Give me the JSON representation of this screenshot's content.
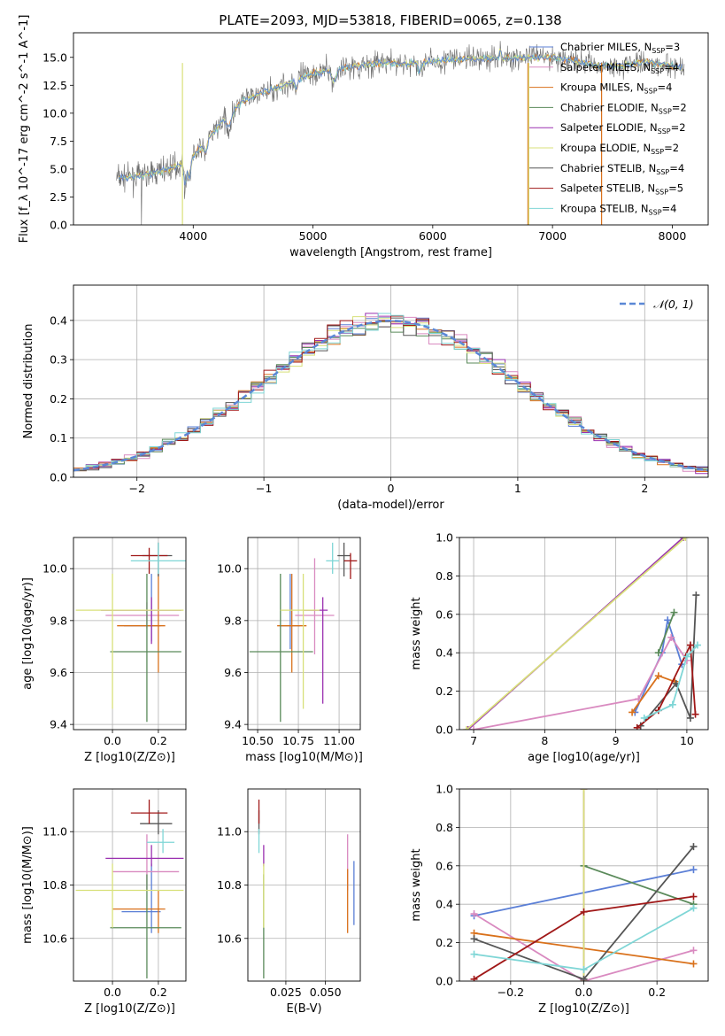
{
  "chart_data": [
    {
      "type": "line",
      "title": "PLATE=2093, MJD=53818, FIBERID=0065, z=0.138",
      "xlabel": "wavelength [Angstrom, rest frame]",
      "ylabel": "Flux [f_λ 10^-17 erg cm^-2 s^-1 A^-1]",
      "xlim": [
        3000,
        8300
      ],
      "ylim": [
        0,
        17.2
      ],
      "xticks": [
        "4000",
        "5000",
        "6000",
        "7000",
        "8000"
      ],
      "yticks": [
        "0.0",
        "2.5",
        "5.0",
        "7.5",
        "10.0",
        "12.5",
        "15.0"
      ],
      "legend": "top-right",
      "series": [
        {
          "name": "Chabrier MILES, N_SSP=3",
          "color": "#5b7fd6"
        },
        {
          "name": "Salpeter MILES, N_SSP=4",
          "color": "#d98ac0"
        },
        {
          "name": "Kroupa MILES, N_SSP=4",
          "color": "#d9711b"
        },
        {
          "name": "Chabrier ELODIE, N_SSP=2",
          "color": "#5a8a5a"
        },
        {
          "name": "Salpeter ELODIE, N_SSP=2",
          "color": "#9a30b0"
        },
        {
          "name": "Kroupa ELODIE, N_SSP=2",
          "color": "#d8e07a"
        },
        {
          "name": "Chabrier STELIB, N_SSP=4",
          "color": "#555555"
        },
        {
          "name": "Salpeter STELIB, N_SSP=5",
          "color": "#a01818"
        },
        {
          "name": "Kroupa STELIB, N_SSP=4",
          "color": "#7fd6d6"
        }
      ],
      "continuum": {
        "x": [
          3350,
          3500,
          3650,
          3800,
          3950,
          4100,
          4250,
          4400,
          4600,
          4800,
          5000,
          5200,
          5400,
          5600,
          5800,
          6000,
          6200,
          6400,
          6600,
          6800,
          7000,
          7200,
          7400,
          7600,
          7800,
          8000,
          8100
        ],
        "y": [
          4.2,
          4.3,
          4.6,
          5.0,
          5.6,
          7.3,
          9.4,
          11.0,
          11.9,
          12.7,
          13.6,
          14.0,
          14.3,
          14.5,
          14.4,
          14.6,
          14.8,
          14.9,
          14.9,
          15.0,
          15.0,
          14.7,
          14.2,
          14.3,
          14.6,
          14.2,
          14.1
        ]
      }
    },
    {
      "type": "line",
      "xlabel": "(data-model)/error",
      "ylabel": "Normed distribution",
      "xlim": [
        -2.5,
        2.5
      ],
      "ylim": [
        0,
        0.49
      ],
      "xticks": [
        "−2",
        "−1",
        "0",
        "1",
        "2"
      ],
      "yticks": [
        "0.0",
        "0.1",
        "0.2",
        "0.3",
        "0.4"
      ],
      "legend": "top-right",
      "reference": {
        "name": "𝒩(0, 1)",
        "color": "#5b88d6",
        "mean": 0,
        "sigma": 1
      }
    },
    {
      "type": "scatter",
      "xlabel": "Z [log10(Z/Z⊙)]",
      "ylabel": "age  [log10(age/yr)]",
      "xlim": [
        -0.17,
        0.32
      ],
      "ylim": [
        9.38,
        10.12
      ],
      "xticks": [
        "0.0",
        "0.2"
      ],
      "yticks": [
        "9.4",
        "9.6",
        "9.8",
        "10.0"
      ],
      "points": [
        {
          "color": "#5b7fd6",
          "x": 0.17,
          "y": 9.78,
          "xerr": [
            0.12,
            0.04
          ],
          "yerr": [
            0.06,
            0.2
          ]
        },
        {
          "color": "#d98ac0",
          "x": 0.15,
          "y": 9.82,
          "xerr": [
            0.18,
            0.14
          ],
          "yerr": [
            0.05,
            0.05
          ]
        },
        {
          "color": "#d9711b",
          "x": 0.2,
          "y": 9.78,
          "xerr": [
            0.18,
            0.03
          ],
          "yerr": [
            0.18,
            0.2
          ]
        },
        {
          "color": "#5a8a5a",
          "x": 0.15,
          "y": 9.68,
          "xerr": [
            0.16,
            0.15
          ],
          "yerr": [
            0.27,
            0.3
          ]
        },
        {
          "color": "#9a30b0",
          "x": 0.17,
          "y": 9.84,
          "xerr": [
            0.22,
            0.13
          ],
          "yerr": [
            0.13,
            0.05
          ]
        },
        {
          "color": "#d8e07a",
          "x": 0.0,
          "y": 9.84,
          "xerr": [
            0.16,
            0.31
          ],
          "yerr": [
            0.38,
            0.14
          ]
        },
        {
          "color": "#555555",
          "x": 0.2,
          "y": 10.05,
          "xerr": [
            0.07,
            0.06
          ],
          "yerr": [
            0.08,
            0.05
          ]
        },
        {
          "color": "#a01818",
          "x": 0.16,
          "y": 10.05,
          "xerr": [
            0.08,
            0.08
          ],
          "yerr": [
            0.07,
            0.03
          ]
        },
        {
          "color": "#7fd6d6",
          "x": 0.2,
          "y": 10.03,
          "xerr": [
            0.12,
            0.12
          ],
          "yerr": [
            0.05,
            0.07
          ]
        }
      ]
    },
    {
      "type": "scatter",
      "xlabel": "mass [log10(M/M⊙)]",
      "ylabel": "",
      "xlim": [
        10.44,
        11.13
      ],
      "ylim": [
        9.38,
        10.12
      ],
      "xticks": [
        "10.50",
        "10.75",
        "11.00"
      ],
      "yticks": [
        "9.4",
        "9.6",
        "9.8",
        "10.0"
      ],
      "points": [
        {
          "color": "#5b7fd6",
          "x": 10.7,
          "y": 9.78,
          "xerr": [
            0.06,
            0.06
          ],
          "yerr": [
            0.09,
            0.2
          ]
        },
        {
          "color": "#d98ac0",
          "x": 10.85,
          "y": 9.82,
          "xerr": [
            0.12,
            0.12
          ],
          "yerr": [
            0.15,
            0.22
          ]
        },
        {
          "color": "#d9711b",
          "x": 10.71,
          "y": 9.78,
          "xerr": [
            0.09,
            0.09
          ],
          "yerr": [
            0.18,
            0.2
          ]
        },
        {
          "color": "#5a8a5a",
          "x": 10.64,
          "y": 9.68,
          "xerr": [
            0.19,
            0.2
          ],
          "yerr": [
            0.27,
            0.3
          ]
        },
        {
          "color": "#9a30b0",
          "x": 10.9,
          "y": 9.84,
          "xerr": [
            0.12,
            0.03
          ],
          "yerr": [
            0.36,
            0.05
          ]
        },
        {
          "color": "#d8e07a",
          "x": 10.78,
          "y": 9.84,
          "xerr": [
            0.14,
            0.1
          ],
          "yerr": [
            0.38,
            0.14
          ]
        },
        {
          "color": "#555555",
          "x": 11.03,
          "y": 10.05,
          "xerr": [
            0.04,
            0.04
          ],
          "yerr": [
            0.08,
            0.05
          ]
        },
        {
          "color": "#a01818",
          "x": 11.07,
          "y": 10.03,
          "xerr": [
            0.04,
            0.04
          ],
          "yerr": [
            0.07,
            0.03
          ]
        },
        {
          "color": "#7fd6d6",
          "x": 10.96,
          "y": 10.03,
          "xerr": [
            0.04,
            0.04
          ],
          "yerr": [
            0.05,
            0.07
          ]
        }
      ]
    },
    {
      "type": "line",
      "xlabel": "age  [log10(age/yr)]",
      "ylabel": "mass weight",
      "xlim": [
        6.8,
        10.3
      ],
      "ylim": [
        0,
        1.0
      ],
      "xticks": [
        "7",
        "8",
        "9",
        "10"
      ],
      "yticks": [
        "0.0",
        "0.2",
        "0.4",
        "0.6",
        "0.8",
        "1.0"
      ],
      "series": [
        {
          "color": "#5b7fd6",
          "x": [
            9.27,
            9.65,
            9.73,
            9.93
          ],
          "y": [
            0.09,
            0.4,
            0.57,
            0.34
          ]
        },
        {
          "color": "#d98ac0",
          "x": [
            7.0,
            9.32,
            9.78,
            10.0
          ],
          "y": [
            0.0,
            0.16,
            0.48,
            0.36
          ]
        },
        {
          "color": "#d9711b",
          "x": [
            9.23,
            9.6,
            9.83
          ],
          "y": [
            0.09,
            0.28,
            0.25
          ]
        },
        {
          "color": "#5a8a5a",
          "x": [
            9.6,
            9.82
          ],
          "y": [
            0.4,
            0.61
          ]
        },
        {
          "color": "#9a30b0",
          "x": [
            6.92,
            9.95
          ],
          "y": [
            0.0,
            1.0
          ]
        },
        {
          "color": "#d8e07a",
          "x": [
            6.9,
            9.98
          ],
          "y": [
            0.0,
            1.0
          ]
        },
        {
          "color": "#555555",
          "x": [
            9.35,
            9.85,
            10.05,
            10.13
          ],
          "y": [
            0.02,
            0.24,
            0.06,
            0.7
          ]
        },
        {
          "color": "#a01818",
          "x": [
            9.3,
            9.6,
            10.05,
            10.12
          ],
          "y": [
            0.01,
            0.1,
            0.44,
            0.08
          ]
        },
        {
          "color": "#7fd6d6",
          "x": [
            9.4,
            9.8,
            10.0,
            10.15
          ],
          "y": [
            0.06,
            0.13,
            0.38,
            0.44
          ]
        }
      ]
    },
    {
      "type": "scatter",
      "xlabel": "Z [log10(Z/Z⊙)]",
      "ylabel": "mass [log10(M/M⊙)]",
      "xlim": [
        -0.17,
        0.32
      ],
      "ylim": [
        10.44,
        11.16
      ],
      "xticks": [
        "0.0",
        "0.2"
      ],
      "yticks": [
        "10.6",
        "10.8",
        "11.0"
      ],
      "points": [
        {
          "color": "#5b7fd6",
          "x": 0.17,
          "y": 10.7,
          "xerr": [
            0.13,
            0.04
          ],
          "yerr": [
            0.08,
            0.18
          ]
        },
        {
          "color": "#d98ac0",
          "x": 0.15,
          "y": 10.85,
          "xerr": [
            0.15,
            0.14
          ],
          "yerr": [
            0.07,
            0.14
          ]
        },
        {
          "color": "#d9711b",
          "x": 0.2,
          "y": 10.71,
          "xerr": [
            0.2,
            0.03
          ],
          "yerr": [
            0.09,
            0.07
          ]
        },
        {
          "color": "#5a8a5a",
          "x": 0.15,
          "y": 10.64,
          "xerr": [
            0.16,
            0.15
          ],
          "yerr": [
            0.19,
            0.2
          ]
        },
        {
          "color": "#9a30b0",
          "x": 0.17,
          "y": 10.9,
          "xerr": [
            0.2,
            0.14
          ],
          "yerr": [
            0.03,
            0.05
          ]
        },
        {
          "color": "#d8e07a",
          "x": 0.0,
          "y": 10.78,
          "xerr": [
            0.16,
            0.31
          ],
          "yerr": [
            0.14,
            0.1
          ]
        },
        {
          "color": "#555555",
          "x": 0.2,
          "y": 11.03,
          "xerr": [
            0.08,
            0.06
          ],
          "yerr": [
            0.04,
            0.05
          ]
        },
        {
          "color": "#a01818",
          "x": 0.16,
          "y": 11.07,
          "xerr": [
            0.08,
            0.08
          ],
          "yerr": [
            0.04,
            0.05
          ]
        },
        {
          "color": "#7fd6d6",
          "x": 0.22,
          "y": 10.96,
          "xerr": [
            0.07,
            0.05
          ],
          "yerr": [
            0.04,
            0.05
          ]
        }
      ]
    },
    {
      "type": "scatter",
      "xlabel": "E(B-V)",
      "ylabel": "",
      "xlim": [
        0.001,
        0.072
      ],
      "ylim": [
        10.44,
        11.16
      ],
      "xticks": [
        "0.025",
        "0.050"
      ],
      "yticks": [
        "10.6",
        "10.8",
        "11.0"
      ],
      "points": [
        {
          "color": "#5b7fd6",
          "x": 0.068,
          "y": 10.7,
          "yerr": [
            0.05,
            0.19
          ]
        },
        {
          "color": "#d98ac0",
          "x": 0.064,
          "y": 10.85,
          "yerr": [
            0.07,
            0.14
          ]
        },
        {
          "color": "#d9711b",
          "x": 0.064,
          "y": 10.71,
          "yerr": [
            0.09,
            0.15
          ]
        },
        {
          "color": "#5a8a5a",
          "x": 0.011,
          "y": 10.64,
          "yerr": [
            0.19,
            0.2
          ]
        },
        {
          "color": "#9a30b0",
          "x": 0.011,
          "y": 10.9,
          "yerr": [
            0.03,
            0.05
          ]
        },
        {
          "color": "#d8e07a",
          "x": 0.011,
          "y": 10.78,
          "yerr": [
            0.14,
            0.1
          ]
        },
        {
          "color": "#555555",
          "x": 0.008,
          "y": 11.03,
          "yerr": [
            0.04,
            0.05
          ]
        },
        {
          "color": "#a01818",
          "x": 0.008,
          "y": 11.07,
          "yerr": [
            0.04,
            0.05
          ]
        },
        {
          "color": "#7fd6d6",
          "x": 0.008,
          "y": 10.96,
          "yerr": [
            0.04,
            0.05
          ]
        }
      ]
    },
    {
      "type": "line",
      "xlabel": "Z [log10(Z/Z⊙)]",
      "ylabel": "mass weight",
      "xlim": [
        -0.34,
        0.34
      ],
      "ylim": [
        0,
        1.0
      ],
      "xticks": [
        "−0.2",
        "0.0",
        "0.2"
      ],
      "yticks": [
        "0.0",
        "0.2",
        "0.4",
        "0.6",
        "0.8",
        "1.0"
      ],
      "series": [
        {
          "color": "#5b7fd6",
          "x": [
            -0.3,
            0.3
          ],
          "y": [
            0.34,
            0.58
          ]
        },
        {
          "color": "#d98ac0",
          "x": [
            -0.3,
            0.0,
            0.3
          ],
          "y": [
            0.35,
            0.0,
            0.16
          ]
        },
        {
          "color": "#d9711b",
          "x": [
            -0.3,
            0.3
          ],
          "y": [
            0.25,
            0.09
          ]
        },
        {
          "color": "#5a8a5a",
          "x": [
            0.0,
            0.3
          ],
          "y": [
            0.6,
            0.4
          ]
        },
        {
          "color": "#9a30b0",
          "x": [
            0.0,
            0.0
          ],
          "y": [
            0.0,
            1.0
          ]
        },
        {
          "color": "#d8e07a",
          "x": [
            0.0,
            0.0
          ],
          "y": [
            0.0,
            1.0
          ]
        },
        {
          "color": "#555555",
          "x": [
            -0.3,
            0.0,
            0.3
          ],
          "y": [
            0.22,
            0.01,
            0.7
          ]
        },
        {
          "color": "#a01818",
          "x": [
            -0.3,
            0.0,
            0.3
          ],
          "y": [
            0.01,
            0.36,
            0.44
          ]
        },
        {
          "color": "#7fd6d6",
          "x": [
            -0.3,
            0.0,
            0.3
          ],
          "y": [
            0.14,
            0.06,
            0.38
          ]
        }
      ]
    }
  ]
}
